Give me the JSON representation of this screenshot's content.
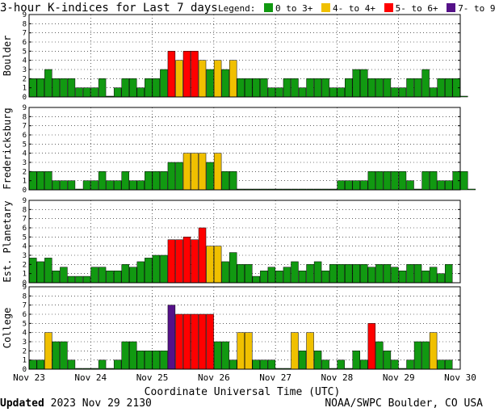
{
  "title": "3-hour K-indices for Last 7 days",
  "legend": {
    "label": "Legend:",
    "items": [
      {
        "name": "0 to 3+",
        "color": "#119911"
      },
      {
        "name": "4- to 4+",
        "color": "#f0c000"
      },
      {
        "name": "5- to 6+",
        "color": "#ff0000"
      },
      {
        "name": "7- to 9",
        "color": "#551188"
      }
    ]
  },
  "footer": {
    "updated_label": "Updated",
    "updated_value": "2023 Nov 29 2130",
    "credit": "NOAA/SWPC Boulder, CO USA"
  },
  "chart_data": {
    "type": "bar",
    "xlabel": "Coordinate Universal Time (UTC)",
    "x_ticks": [
      "Nov 23",
      "Nov 24",
      "Nov 25",
      "Nov 26",
      "Nov 27",
      "Nov 28",
      "Nov 29",
      "Nov 30"
    ],
    "ylim": [
      0,
      9
    ],
    "y_ticks": [
      0,
      1,
      2,
      3,
      4,
      5,
      6,
      7,
      8,
      9
    ],
    "grid": true,
    "bars_per_day": 8,
    "panels": [
      {
        "station": "Boulder",
        "values": [
          2,
          2,
          3,
          2,
          2,
          2,
          1,
          1,
          1,
          2,
          0,
          1,
          2,
          2,
          1,
          2,
          2,
          3,
          5,
          4,
          5,
          5,
          4,
          3,
          4,
          3,
          4,
          2,
          2,
          2,
          2,
          1,
          1,
          2,
          2,
          1,
          2,
          2,
          2,
          1,
          1,
          2,
          3,
          3,
          2,
          2,
          2,
          1,
          1,
          2,
          2,
          3,
          1,
          2,
          2,
          2,
          0
        ]
      },
      {
        "station": "Fredericksburg",
        "values": [
          2,
          2,
          2,
          1,
          1,
          1,
          0,
          1,
          1,
          2,
          1,
          1,
          2,
          1,
          1,
          2,
          2,
          2,
          3,
          3,
          4,
          4,
          4,
          3,
          4,
          2,
          2,
          0,
          0,
          0,
          0,
          0,
          0,
          0,
          0,
          0,
          0,
          0,
          0,
          0,
          1,
          1,
          1,
          1,
          2,
          2,
          2,
          2,
          2,
          1,
          0,
          2,
          2,
          1,
          1,
          2,
          2,
          0
        ]
      },
      {
        "station": "Est. Planetary",
        "values": [
          2.7,
          2.3,
          2.7,
          1.3,
          1.7,
          0.7,
          0.7,
          0.7,
          1.7,
          1.7,
          1.3,
          1.3,
          2.0,
          1.7,
          2.3,
          2.7,
          3.0,
          3.0,
          4.7,
          4.7,
          5.0,
          4.7,
          6.0,
          4.0,
          4.0,
          2.3,
          3.3,
          2.0,
          2.0,
          0.7,
          1.3,
          1.7,
          1.3,
          1.7,
          2.3,
          1.3,
          2.0,
          2.3,
          1.3,
          2.0,
          2.0,
          2.0,
          2.0,
          2.0,
          1.7,
          2.0,
          2.0,
          1.7,
          1.3,
          2.0,
          2.0,
          1.3,
          1.7,
          1.0,
          2.0
        ]
      },
      {
        "station": "College",
        "values": [
          1,
          1,
          4,
          3,
          3,
          1,
          0,
          0,
          0,
          1,
          0,
          1,
          3,
          3,
          2,
          2,
          2,
          2,
          7,
          6,
          6,
          6,
          6,
          6,
          3,
          3,
          1,
          4,
          4,
          1,
          1,
          1,
          0,
          0,
          4,
          2,
          4,
          2,
          1,
          0,
          1,
          0,
          2,
          1,
          5,
          3,
          2,
          1,
          0,
          1,
          3,
          3,
          4,
          1,
          1
        ]
      }
    ]
  }
}
